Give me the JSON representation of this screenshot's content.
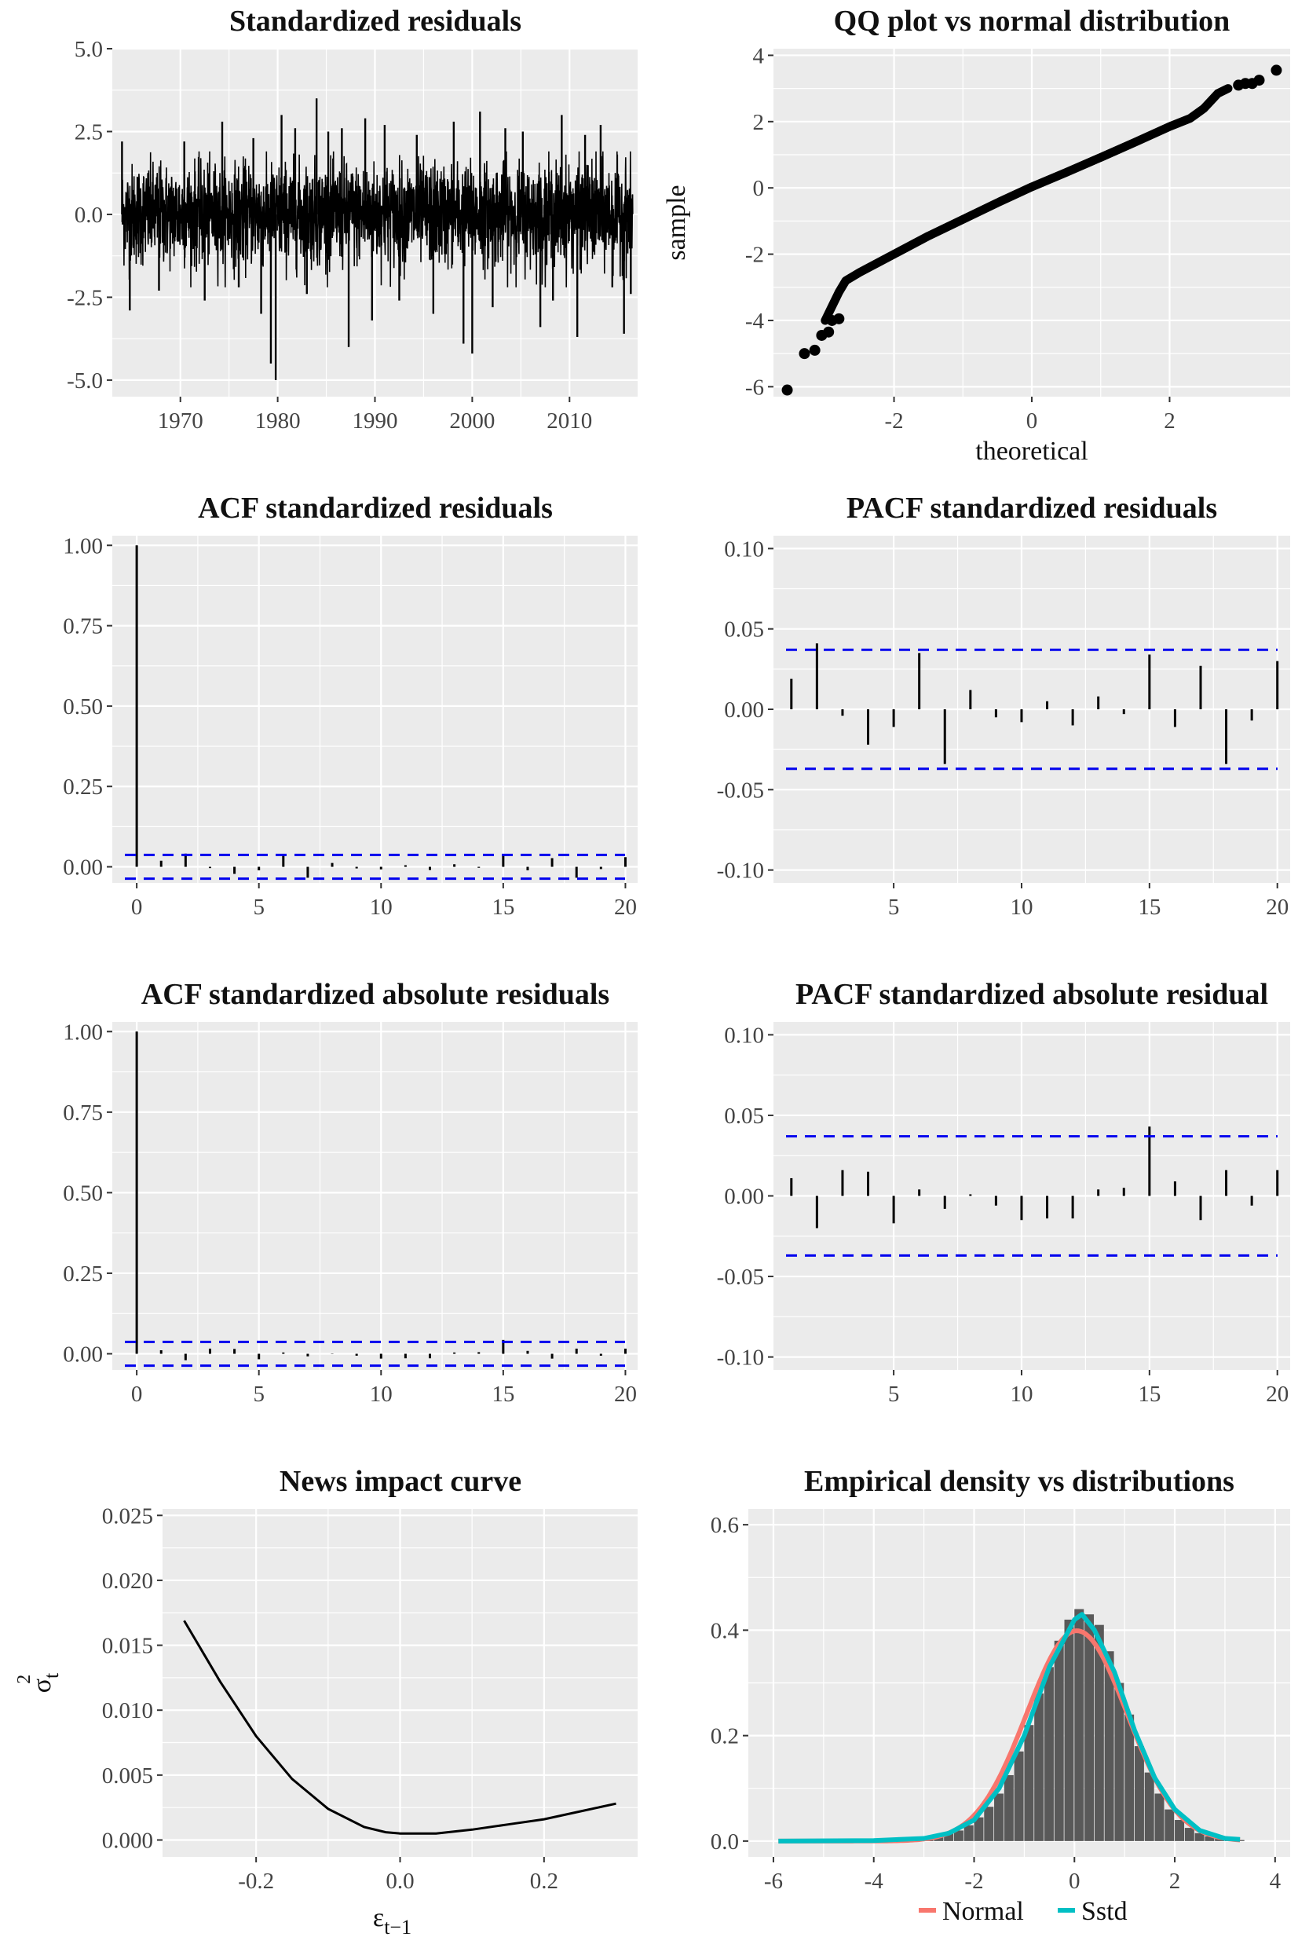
{
  "chart_data": [
    {
      "id": "ts",
      "type": "line",
      "title": "Standardized residuals",
      "xlabel": "",
      "ylabel": "",
      "xlim": [
        1963,
        2017
      ],
      "ylim": [
        -5.5,
        5.0
      ],
      "x_ticks": [
        {
          "v": 1970,
          "label": "1970"
        },
        {
          "v": 1980,
          "label": "1980"
        },
        {
          "v": 1990,
          "label": "1990"
        },
        {
          "v": 2000,
          "label": "2000"
        },
        {
          "v": 2010,
          "label": "2010"
        }
      ],
      "y_ticks": [
        {
          "v": -5,
          "label": "-5.0"
        },
        {
          "v": -2.5,
          "label": "-2.5"
        },
        {
          "v": 0,
          "label": "0.0"
        },
        {
          "v": 2.5,
          "label": "2.5"
        },
        {
          "v": 5,
          "label": "5.0"
        }
      ],
      "x_range": [
        1964,
        2016.5
      ],
      "spikes": [
        {
          "x": 1964.0,
          "y": 2.2
        },
        {
          "x": 1964.8,
          "y": -2.9
        },
        {
          "x": 1967.8,
          "y": -2.3
        },
        {
          "x": 1970.4,
          "y": 2.2
        },
        {
          "x": 1972.5,
          "y": -2.6
        },
        {
          "x": 1974.3,
          "y": 2.8
        },
        {
          "x": 1976.0,
          "y": -2.2
        },
        {
          "x": 1977.5,
          "y": 2.3
        },
        {
          "x": 1978.3,
          "y": -3.0
        },
        {
          "x": 1979.3,
          "y": -4.5
        },
        {
          "x": 1979.8,
          "y": -5.0
        },
        {
          "x": 1980.4,
          "y": 3.0
        },
        {
          "x": 1981.8,
          "y": 2.6
        },
        {
          "x": 1983.0,
          "y": -2.4
        },
        {
          "x": 1984.0,
          "y": 3.5
        },
        {
          "x": 1985.2,
          "y": 2.5
        },
        {
          "x": 1986.6,
          "y": 2.6
        },
        {
          "x": 1987.3,
          "y": -4.0
        },
        {
          "x": 1989.0,
          "y": 2.9
        },
        {
          "x": 1989.7,
          "y": -3.2
        },
        {
          "x": 1991.0,
          "y": 2.7
        },
        {
          "x": 1992.5,
          "y": -2.6
        },
        {
          "x": 1994.3,
          "y": 2.4
        },
        {
          "x": 1996.0,
          "y": -3.0
        },
        {
          "x": 1998.1,
          "y": 2.8
        },
        {
          "x": 1999.1,
          "y": -3.9
        },
        {
          "x": 2000.0,
          "y": -4.2
        },
        {
          "x": 2000.8,
          "y": 3.1
        },
        {
          "x": 2002.1,
          "y": -2.8
        },
        {
          "x": 2003.4,
          "y": 2.6
        },
        {
          "x": 2005.2,
          "y": 2.5
        },
        {
          "x": 2007.0,
          "y": -3.4
        },
        {
          "x": 2008.3,
          "y": -2.6
        },
        {
          "x": 2009.2,
          "y": 3.0
        },
        {
          "x": 2010.8,
          "y": -3.7
        },
        {
          "x": 2011.6,
          "y": 2.4
        },
        {
          "x": 2013.2,
          "y": 2.7
        },
        {
          "x": 2014.4,
          "y": -2.2
        },
        {
          "x": 2015.6,
          "y": -3.6
        },
        {
          "x": 2016.3,
          "y": -2.4
        }
      ]
    },
    {
      "id": "qq",
      "type": "scatter",
      "title": "QQ plot vs normal distribution",
      "xlabel": "theoretical",
      "ylabel": "sample",
      "xlim": [
        -3.75,
        3.75
      ],
      "ylim": [
        -6.3,
        4.2
      ],
      "x_ticks": [
        {
          "v": -2,
          "label": "-2"
        },
        {
          "v": 0,
          "label": "0"
        },
        {
          "v": 2,
          "label": "2"
        }
      ],
      "y_ticks": [
        {
          "v": -6,
          "label": "-6"
        },
        {
          "v": -4,
          "label": "-4"
        },
        {
          "v": -2,
          "label": "-2"
        },
        {
          "v": 0,
          "label": "0"
        },
        {
          "v": 2,
          "label": "2"
        },
        {
          "v": 4,
          "label": "4"
        }
      ],
      "curve": [
        [
          -3.0,
          -4.0
        ],
        [
          -2.8,
          -3.15
        ],
        [
          -2.7,
          -2.8
        ],
        [
          -2.5,
          -2.55
        ],
        [
          -2.0,
          -2.0
        ],
        [
          -1.5,
          -1.45
        ],
        [
          -1.0,
          -0.95
        ],
        [
          -0.5,
          -0.45
        ],
        [
          0.0,
          0.03
        ],
        [
          0.5,
          0.47
        ],
        [
          1.0,
          0.92
        ],
        [
          1.5,
          1.38
        ],
        [
          2.0,
          1.85
        ],
        [
          2.3,
          2.1
        ],
        [
          2.5,
          2.4
        ],
        [
          2.7,
          2.85
        ],
        [
          2.85,
          3.0
        ]
      ],
      "points": [
        [
          -3.55,
          -6.1
        ],
        [
          -3.3,
          -5.0
        ],
        [
          -3.15,
          -4.9
        ],
        [
          -3.05,
          -4.45
        ],
        [
          -2.95,
          -4.35
        ],
        [
          -2.9,
          -4.0
        ],
        [
          -2.8,
          -3.95
        ],
        [
          3.0,
          3.1
        ],
        [
          3.1,
          3.15
        ],
        [
          3.2,
          3.15
        ],
        [
          3.3,
          3.25
        ],
        [
          3.55,
          3.55
        ]
      ]
    },
    {
      "id": "acf1",
      "type": "bar",
      "title": "ACF standardized residuals",
      "xlim": [
        -1,
        20.5
      ],
      "ylim": [
        -0.05,
        1.03
      ],
      "x_ticks": [
        {
          "v": 0,
          "label": "0"
        },
        {
          "v": 5,
          "label": "5"
        },
        {
          "v": 10,
          "label": "10"
        },
        {
          "v": 15,
          "label": "15"
        },
        {
          "v": 20,
          "label": "20"
        }
      ],
      "y_ticks": [
        {
          "v": 0,
          "label": "0.00"
        },
        {
          "v": 0.25,
          "label": "0.25"
        },
        {
          "v": 0.5,
          "label": "0.50"
        },
        {
          "v": 0.75,
          "label": "0.75"
        },
        {
          "v": 1.0,
          "label": "1.00"
        }
      ],
      "ci": 0.037,
      "lags": [
        0,
        1,
        2,
        3,
        4,
        5,
        6,
        7,
        8,
        9,
        10,
        11,
        12,
        13,
        14,
        15,
        16,
        17,
        18,
        19,
        20
      ],
      "values": [
        1.0,
        0.019,
        0.041,
        -0.004,
        -0.022,
        -0.011,
        0.035,
        -0.034,
        0.012,
        -0.005,
        -0.008,
        0.005,
        -0.01,
        0.008,
        -0.003,
        0.034,
        -0.011,
        0.027,
        -0.034,
        -0.007,
        0.03
      ]
    },
    {
      "id": "pacf1",
      "type": "bar",
      "title": "PACF standardized residuals",
      "xlim": [
        0.3,
        20.5
      ],
      "ylim": [
        -0.108,
        0.108
      ],
      "x_ticks": [
        {
          "v": 5,
          "label": "5"
        },
        {
          "v": 10,
          "label": "10"
        },
        {
          "v": 15,
          "label": "15"
        },
        {
          "v": 20,
          "label": "20"
        }
      ],
      "y_ticks": [
        {
          "v": -0.1,
          "label": "-0.10"
        },
        {
          "v": -0.05,
          "label": "-0.05"
        },
        {
          "v": 0,
          "label": "0.00"
        },
        {
          "v": 0.05,
          "label": "0.05"
        },
        {
          "v": 0.1,
          "label": "0.10"
        }
      ],
      "ci": 0.037,
      "lags": [
        1,
        2,
        3,
        4,
        5,
        6,
        7,
        8,
        9,
        10,
        11,
        12,
        13,
        14,
        15,
        16,
        17,
        18,
        19,
        20
      ],
      "values": [
        0.019,
        0.041,
        -0.004,
        -0.022,
        -0.011,
        0.035,
        -0.034,
        0.012,
        -0.005,
        -0.008,
        0.005,
        -0.01,
        0.008,
        -0.003,
        0.034,
        -0.011,
        0.027,
        -0.034,
        -0.007,
        0.03
      ]
    },
    {
      "id": "acf2",
      "type": "bar",
      "title": "ACF standardized absolute residuals",
      "xlim": [
        -1,
        20.5
      ],
      "ylim": [
        -0.05,
        1.03
      ],
      "x_ticks": [
        {
          "v": 0,
          "label": "0"
        },
        {
          "v": 5,
          "label": "5"
        },
        {
          "v": 10,
          "label": "10"
        },
        {
          "v": 15,
          "label": "15"
        },
        {
          "v": 20,
          "label": "20"
        }
      ],
      "y_ticks": [
        {
          "v": 0,
          "label": "0.00"
        },
        {
          "v": 0.25,
          "label": "0.25"
        },
        {
          "v": 0.5,
          "label": "0.50"
        },
        {
          "v": 0.75,
          "label": "0.75"
        },
        {
          "v": 1.0,
          "label": "1.00"
        }
      ],
      "ci": 0.037,
      "lags": [
        0,
        1,
        2,
        3,
        4,
        5,
        6,
        7,
        8,
        9,
        10,
        11,
        12,
        13,
        14,
        15,
        16,
        17,
        18,
        19,
        20
      ],
      "values": [
        1.0,
        0.011,
        -0.02,
        0.016,
        0.015,
        -0.017,
        0.004,
        -0.008,
        0.001,
        -0.006,
        -0.015,
        -0.014,
        -0.014,
        0.004,
        0.005,
        0.043,
        0.009,
        -0.015,
        0.016,
        -0.006,
        0.016
      ]
    },
    {
      "id": "pacf2",
      "type": "bar",
      "title": "PACF standardized absolute residual",
      "xlim": [
        0.3,
        20.5
      ],
      "ylim": [
        -0.108,
        0.108
      ],
      "x_ticks": [
        {
          "v": 5,
          "label": "5"
        },
        {
          "v": 10,
          "label": "10"
        },
        {
          "v": 15,
          "label": "15"
        },
        {
          "v": 20,
          "label": "20"
        }
      ],
      "y_ticks": [
        {
          "v": -0.1,
          "label": "-0.10"
        },
        {
          "v": -0.05,
          "label": "-0.05"
        },
        {
          "v": 0,
          "label": "0.00"
        },
        {
          "v": 0.05,
          "label": "0.05"
        },
        {
          "v": 0.1,
          "label": "0.10"
        }
      ],
      "ci": 0.037,
      "lags": [
        1,
        2,
        3,
        4,
        5,
        6,
        7,
        8,
        9,
        10,
        11,
        12,
        13,
        14,
        15,
        16,
        17,
        18,
        19,
        20
      ],
      "values": [
        0.011,
        -0.02,
        0.016,
        0.015,
        -0.017,
        0.004,
        -0.008,
        0.001,
        -0.006,
        -0.015,
        -0.014,
        -0.014,
        0.004,
        0.005,
        0.043,
        0.009,
        -0.015,
        0.016,
        -0.006,
        0.016
      ]
    },
    {
      "id": "nic",
      "type": "line",
      "title": "News impact curve",
      "xlabel": "ε",
      "xlabel_sub": "t−1",
      "ylabel": "σ",
      "ylabel_sub": "t",
      "ylabel_sup": "2",
      "xlim": [
        -0.33,
        0.33
      ],
      "ylim": [
        -0.0013,
        0.0255
      ],
      "x_ticks": [
        {
          "v": -0.2,
          "label": "-0.2"
        },
        {
          "v": 0,
          "label": "0.0"
        },
        {
          "v": 0.2,
          "label": "0.2"
        }
      ],
      "y_ticks": [
        {
          "v": 0,
          "label": "0.000"
        },
        {
          "v": 0.005,
          "label": "0.005"
        },
        {
          "v": 0.01,
          "label": "0.010"
        },
        {
          "v": 0.015,
          "label": "0.015"
        },
        {
          "v": 0.02,
          "label": "0.020"
        },
        {
          "v": 0.025,
          "label": "0.025"
        }
      ],
      "points": [
        [
          -0.3,
          0.0169
        ],
        [
          -0.25,
          0.0122
        ],
        [
          -0.2,
          0.008
        ],
        [
          -0.15,
          0.0047
        ],
        [
          -0.1,
          0.0024
        ],
        [
          -0.05,
          0.001
        ],
        [
          -0.02,
          0.0006
        ],
        [
          0.0,
          0.0005
        ],
        [
          0.05,
          0.0005
        ],
        [
          0.1,
          0.0008
        ],
        [
          0.15,
          0.0012
        ],
        [
          0.2,
          0.0016
        ],
        [
          0.25,
          0.0022
        ],
        [
          0.3,
          0.0028
        ]
      ]
    },
    {
      "id": "dens",
      "type": "bar",
      "title": "Empirical density vs distributions",
      "xlim": [
        -6.5,
        4.3
      ],
      "ylim": [
        -0.03,
        0.63
      ],
      "x_ticks": [
        {
          "v": -6,
          "label": "-6"
        },
        {
          "v": -4,
          "label": "-4"
        },
        {
          "v": -2,
          "label": "-2"
        },
        {
          "v": 0,
          "label": "0"
        },
        {
          "v": 2,
          "label": "2"
        },
        {
          "v": 4,
          "label": "4"
        }
      ],
      "y_ticks": [
        {
          "v": 0,
          "label": "0.0"
        },
        {
          "v": 0.2,
          "label": "0.2"
        },
        {
          "v": 0.4,
          "label": "0.4"
        },
        {
          "v": 0.6,
          "label": "0.6"
        }
      ],
      "hist_bin_width": 0.2,
      "hist_x": [
        -3.3,
        -3.1,
        -2.9,
        -2.7,
        -2.5,
        -2.3,
        -2.1,
        -1.9,
        -1.7,
        -1.5,
        -1.3,
        -1.1,
        -0.9,
        -0.7,
        -0.5,
        -0.3,
        -0.1,
        0.1,
        0.3,
        0.5,
        0.7,
        0.9,
        1.1,
        1.3,
        1.5,
        1.7,
        1.9,
        2.1,
        2.3,
        2.5,
        2.7,
        2.9,
        3.1,
        3.3
      ],
      "hist_density": [
        0.003,
        0.004,
        0.006,
        0.009,
        0.014,
        0.02,
        0.03,
        0.045,
        0.065,
        0.09,
        0.125,
        0.17,
        0.22,
        0.28,
        0.33,
        0.38,
        0.42,
        0.44,
        0.43,
        0.41,
        0.36,
        0.3,
        0.24,
        0.18,
        0.13,
        0.09,
        0.06,
        0.04,
        0.025,
        0.015,
        0.009,
        0.005,
        0.003,
        0.002
      ],
      "series": [
        {
          "name": "Normal",
          "color": "#F8766D"
        },
        {
          "name": "Sstd",
          "color": "#00BFC4"
        }
      ],
      "curve_x_range": [
        -5.9,
        3.3
      ],
      "normal": {
        "mean": 0.05,
        "sd": 1.0
      },
      "sstd_points": [
        [
          -5.9,
          0.0
        ],
        [
          -4.0,
          0.001
        ],
        [
          -3.0,
          0.005
        ],
        [
          -2.5,
          0.015
        ],
        [
          -2.0,
          0.04
        ],
        [
          -1.5,
          0.1
        ],
        [
          -1.0,
          0.2
        ],
        [
          -0.5,
          0.33
        ],
        [
          0.0,
          0.42
        ],
        [
          0.15,
          0.43
        ],
        [
          0.4,
          0.4
        ],
        [
          0.8,
          0.32
        ],
        [
          1.2,
          0.21
        ],
        [
          1.6,
          0.12
        ],
        [
          2.0,
          0.06
        ],
        [
          2.5,
          0.02
        ],
        [
          3.0,
          0.005
        ],
        [
          3.3,
          0.003
        ]
      ]
    }
  ]
}
